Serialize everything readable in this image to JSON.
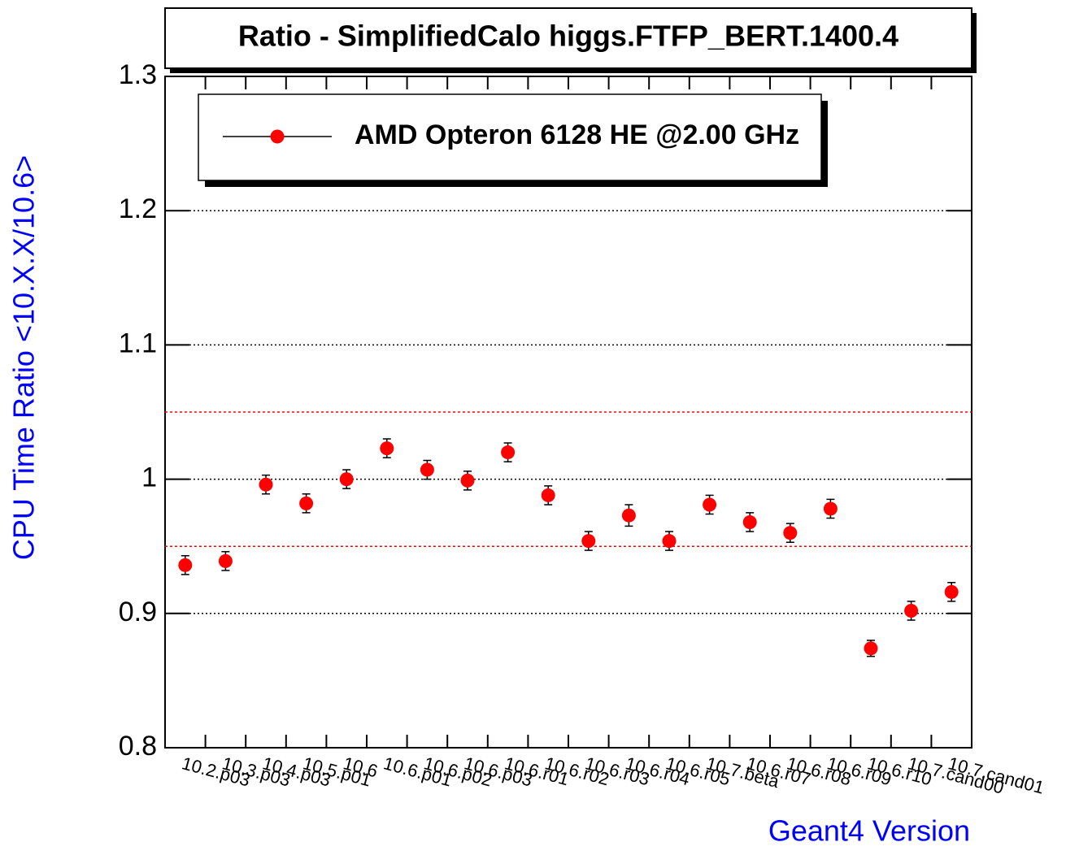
{
  "chart_data": {
    "type": "errorbar",
    "title": "Ratio - SimplifiedCalo higgs.FTFP_BERT.1400.4",
    "x_label": "Geant4 Version",
    "y_label": "CPU Time Ratio <10.X.X/10.6>",
    "categories": [
      "10.2.p03",
      "10.3.p03",
      "10.4.p03",
      "10.5.p01",
      "10.6",
      "10.6.p01",
      "10.6.p02",
      "10.6.p03",
      "10.6.r01",
      "10.6.r02",
      "10.6.r03",
      "10.6.r04",
      "10.6.r05",
      "10.7.beta",
      "10.6.r07",
      "10.6.r08",
      "10.6.r09",
      "10.6.r10",
      "10.7.cand00",
      "10.7.cand01"
    ],
    "series": [
      {
        "name": "AMD Opteron 6128 HE @2.00 GHz",
        "color": "#ff0000",
        "values": [
          0.936,
          0.939,
          0.996,
          0.982,
          1.0,
          1.023,
          1.007,
          0.999,
          1.02,
          0.988,
          0.954,
          0.973,
          0.954,
          0.981,
          0.968,
          0.96,
          0.978,
          0.874,
          0.902,
          0.916
        ],
        "errors": [
          0.007,
          0.007,
          0.007,
          0.007,
          0.007,
          0.007,
          0.007,
          0.007,
          0.007,
          0.007,
          0.007,
          0.008,
          0.007,
          0.007,
          0.007,
          0.007,
          0.007,
          0.006,
          0.007,
          0.007
        ]
      }
    ],
    "ylim": [
      0.8,
      1.3
    ],
    "yticks": [
      0.8,
      0.9,
      1,
      1.1,
      1.2,
      1.3
    ],
    "grid": true,
    "reference_lines": [
      0.95,
      1.05
    ],
    "reference_color": "#ff0000",
    "legend": "upper left"
  }
}
